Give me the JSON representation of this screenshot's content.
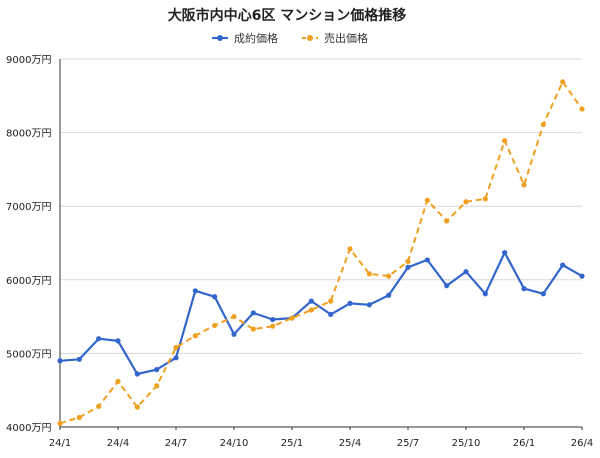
{
  "chart_data": {
    "type": "line",
    "title": "大阪市内中心6区 マンション価格推移",
    "xlabel": "",
    "ylabel": "",
    "x_tick_labels": [
      "24/1",
      "24/4",
      "24/7",
      "24/10",
      "25/1",
      "25/4",
      "25/7",
      "25/10",
      "26/1",
      "26/4"
    ],
    "y_tick_labels": [
      "4000万円",
      "5000万円",
      "6000万円",
      "7000万円",
      "8000万円",
      "9000万円"
    ],
    "y_ticks": [
      4000,
      5000,
      6000,
      7000,
      8000,
      9000
    ],
    "ylim": [
      4000,
      9000
    ],
    "legend": "top-center",
    "grid": true,
    "series": [
      {
        "name": "成約価格",
        "color": "#3366cc",
        "style": "solid",
        "values": [
          4900,
          4920,
          5200,
          5170,
          4720,
          4780,
          4940,
          5850,
          5770,
          5260,
          5550,
          5460,
          5480,
          5710,
          5530,
          5680,
          5660,
          5790,
          6170,
          6270,
          5920,
          6110,
          5810,
          6370,
          5880,
          5810,
          6200,
          6050
        ]
      },
      {
        "name": "売出価格",
        "color": "#f0a020",
        "style": "dashed",
        "values": [
          4050,
          4130,
          4280,
          4620,
          4270,
          4560,
          5080,
          5240,
          5380,
          5500,
          5330,
          5370,
          5480,
          5590,
          5710,
          6420,
          6080,
          6050,
          6250,
          7080,
          6800,
          7060,
          7100,
          7890,
          7290,
          8110,
          8690,
          8320
        ]
      }
    ]
  }
}
